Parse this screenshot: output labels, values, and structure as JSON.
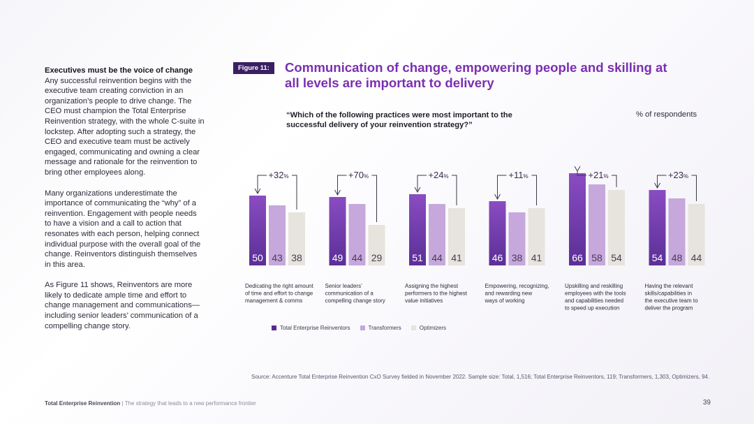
{
  "left": {
    "heading": "Executives must be the voice of change",
    "p1": "Any successful reinvention begins with the executive team creating conviction in an organization’s people to drive change. The CEO must champion the Total Enterprise Reinvention strategy, with the whole C-suite in lockstep. After adopting such a strategy, the CEO and executive team must be actively engaged, communicating and owning a clear message and rationale for the reinvention to bring other employees along.",
    "p2": "Many organizations underestimate the importance of communicating the “why” of a reinvention. Engagement with people needs to have a vision and a call to action that resonates with each person, helping connect individual purpose with the overall goal of the change. Reinventors distinguish themselves in this area.",
    "p3": "As Figure 11 shows, Reinventors are more likely to dedicate ample time and effort to change management and communications—including senior leaders’ communication of a compelling change story."
  },
  "figure": {
    "badge": "Figure 11:",
    "title": "Communication of change, empowering people and skilling at all levels are important to delivery",
    "question": "“Which of the following practices were most important to the successful delivery of your reinvention strategy?”",
    "unit_label": "% of respondents"
  },
  "colors": {
    "reinventors": "#7a3fad",
    "transformers": "#c6a8dc",
    "optimizers": "#e6e4dc"
  },
  "chart_data": {
    "type": "bar",
    "categories": [
      "Dedicating the right amount of time and effort to change management & comms",
      "Senior leaders’ communication of a compelling change story",
      "Assigning the highest performers to the highest value initiatives",
      "Empowering, recognizing, and rewarding new ways of working",
      "Upskilling and reskilling employees with the tools and capabilities needed to speed up execution",
      "Having the relevant skills/capabilities in the executive team to deliver the program"
    ],
    "category_lines": [
      [
        "Dedicating the right amount",
        "of time and effort to change",
        "management & comms"
      ],
      [
        "Senior leaders’",
        "communication of a",
        "compelling change story"
      ],
      [
        "Assigning the highest",
        "performers to the highest",
        "value initiatives"
      ],
      [
        "Empowering, recognizing,",
        "and rewarding new",
        "ways of working"
      ],
      [
        "Upskilling and reskilling",
        "employees with the tools",
        "and capabilities needed",
        "to speed up execution"
      ],
      [
        "Having the relevant",
        "skills/capabilities in",
        "the executive team to",
        "deliver the program"
      ]
    ],
    "series": [
      {
        "name": "Total Enterprise Reinventors",
        "values": [
          50,
          49,
          51,
          46,
          66,
          54
        ]
      },
      {
        "name": "Transformers",
        "values": [
          43,
          44,
          44,
          38,
          58,
          48
        ]
      },
      {
        "name": "Optimizers",
        "values": [
          38,
          29,
          41,
          41,
          54,
          44
        ]
      }
    ],
    "differences": [
      "+32",
      "+70",
      "+24",
      "+11",
      "+21",
      "+23"
    ],
    "diff_unit": "%",
    "ylim": [
      0,
      70
    ]
  },
  "source": "Source: Accenture Total Enterprise Reinvention CxO Survey fielded in November 2022. Sample size: Total, 1,516; Total Enterprise Reinventors, 119; Transformers, 1,303, Optimizers, 94.",
  "footer": {
    "brand": "Total Enterprise Reinvention",
    "sep": " | ",
    "tagline": "The strategy that leads to a new performance frontier"
  },
  "page_number": "39"
}
